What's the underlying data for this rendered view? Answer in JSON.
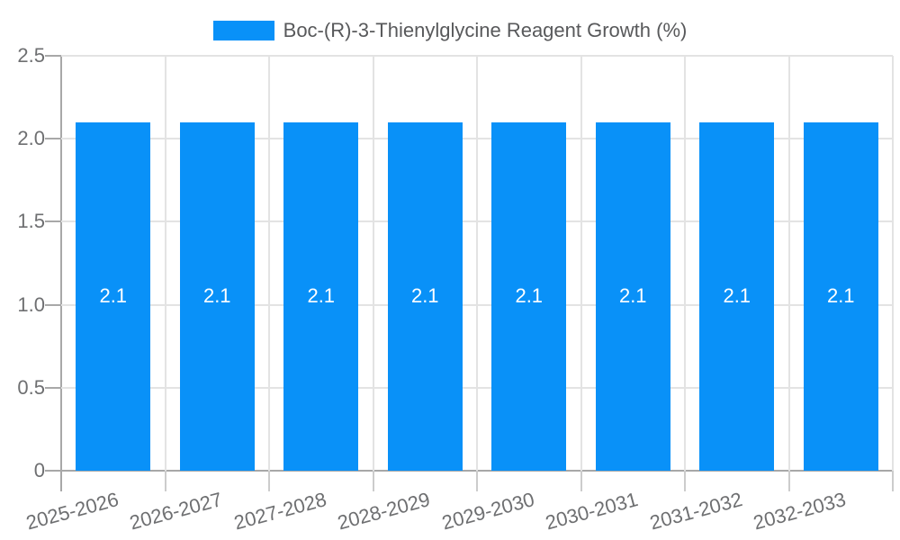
{
  "legend": {
    "label": "Boc-(R)-3-Thienylglycine Reagent Growth (%)"
  },
  "colors": {
    "bar_fill": "#0991F8",
    "legend_text": "#58595B",
    "tick_text": "#6E6F71",
    "bar_label_text": "#FFFFFF",
    "gridline": "#E3E3E3",
    "axis_line": "#A8A8A8",
    "background": "#FFFFFF"
  },
  "chart_data": {
    "type": "bar",
    "title": "Boc-(R)-3-Thienylglycine Reagent Growth (%)",
    "categories": [
      "2025-2026",
      "2026-2027",
      "2027-2028",
      "2028-2029",
      "2029-2030",
      "2030-2031",
      "2031-2032",
      "2032-2033"
    ],
    "values": [
      2.1,
      2.1,
      2.1,
      2.1,
      2.1,
      2.1,
      2.1,
      2.1
    ],
    "bar_labels": [
      "2.1",
      "2.1",
      "2.1",
      "2.1",
      "2.1",
      "2.1",
      "2.1",
      "2.1"
    ],
    "xlabel": "",
    "ylabel": "",
    "ylim": [
      0,
      2.5
    ],
    "yticks": [
      0,
      0.5,
      1,
      1.5,
      2,
      2.5
    ],
    "ytick_labels": [
      "0",
      "0.5",
      "1.0",
      "1.5",
      "2.0",
      "2.5"
    ],
    "grid": true,
    "legend_position": "top",
    "x_label_rotation_deg": -15,
    "bar_value_label_position": "center"
  }
}
